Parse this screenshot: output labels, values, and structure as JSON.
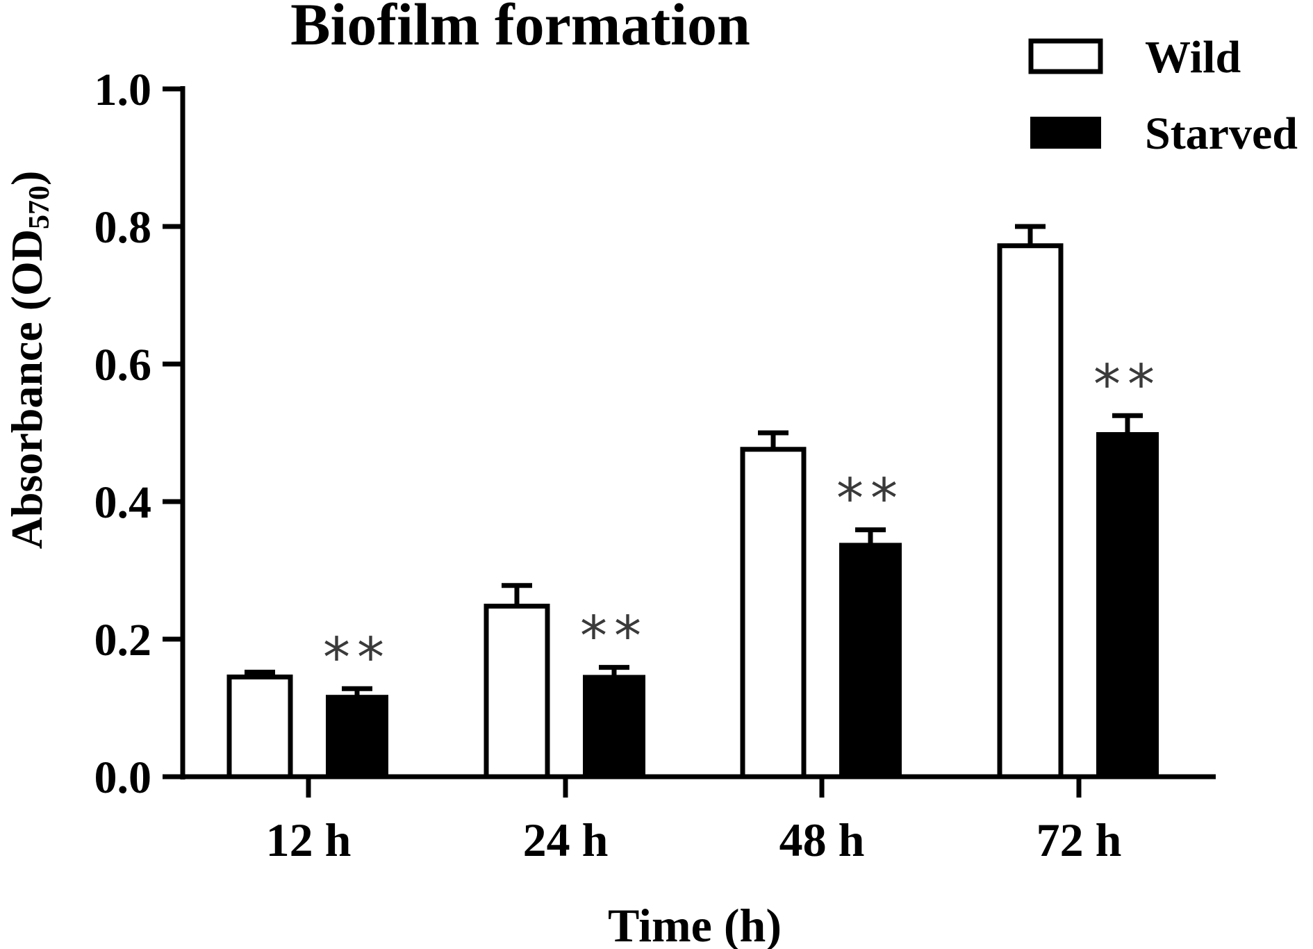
{
  "chart_data": {
    "type": "bar",
    "title": "Biofilm formation",
    "xlabel": "Time (h)",
    "ylabel_main": "Absorbance (OD",
    "ylabel_sub": "570",
    "ylabel_close": ")",
    "categories": [
      "12 h",
      "24 h",
      "48 h",
      "72 h"
    ],
    "series": [
      {
        "name": "Wild",
        "fill": "#ffffff",
        "values": [
          0.145,
          0.248,
          0.476,
          0.772
        ],
        "errors": [
          0.007,
          0.03,
          0.024,
          0.028
        ],
        "significance": [
          "",
          "",
          "",
          ""
        ]
      },
      {
        "name": "Starved",
        "fill": "#000000",
        "values": [
          0.118,
          0.147,
          0.339,
          0.5
        ],
        "errors": [
          0.01,
          0.012,
          0.02,
          0.025
        ],
        "significance": [
          "**",
          "**",
          "**",
          "**"
        ]
      }
    ],
    "ylim": [
      0,
      1.0
    ],
    "yticks": [
      "0.0",
      "0.2",
      "0.4",
      "0.6",
      "0.8",
      "1.0"
    ],
    "legend_position": "top-right",
    "grid": false,
    "stroke_color": "#000000",
    "significance_color": "#3a3a3a"
  }
}
